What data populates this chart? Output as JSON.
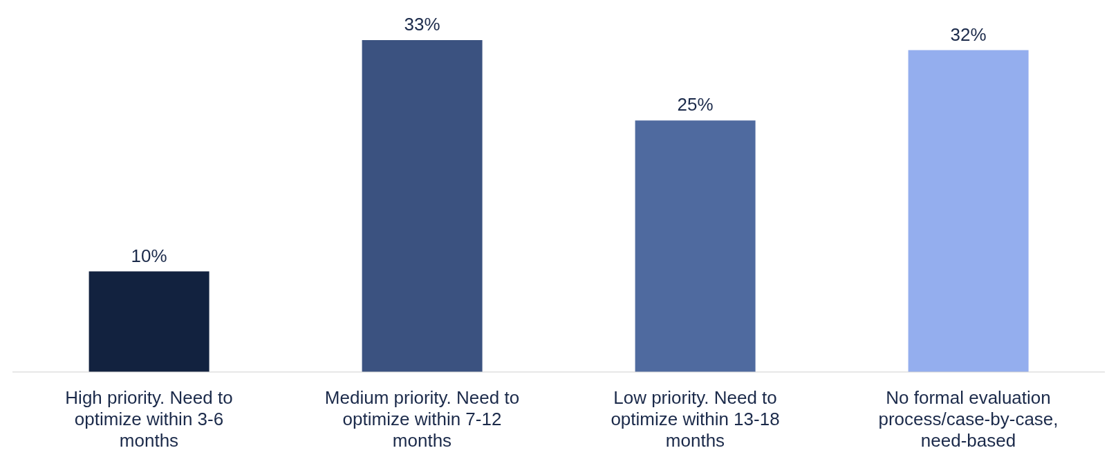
{
  "chart_data": {
    "type": "bar",
    "categories": [
      "High priority. Need to optimize within 3-6 months",
      "Medium priority. Need to optimize within 7-12 months",
      "Low priority. Need to optimize within 13-18 months",
      "No formal evaluation process/case-by-case, need-based"
    ],
    "values": [
      10,
      33,
      25,
      32
    ],
    "colors": [
      "#12223f",
      "#3b5280",
      "#4f6a9f",
      "#94aeee"
    ],
    "value_labels": [
      "10%",
      "33%",
      "25%",
      "32%"
    ]
  }
}
